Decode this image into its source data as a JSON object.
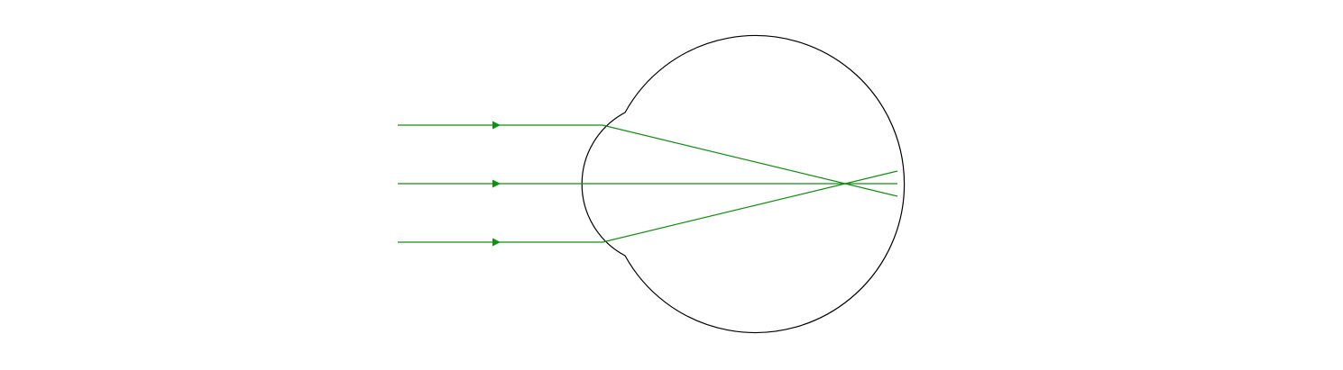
{
  "diagram": {
    "colors": {
      "outline": "#000000",
      "ray": "#109010",
      "arrowhead": "#109010",
      "background": "#ffffff"
    },
    "eyeball": {
      "shape": "eye-outline",
      "part": "cornea-bulge"
    },
    "rays": [
      {
        "id": "upper",
        "path": "parallel-then-refracted-down"
      },
      {
        "id": "middle",
        "path": "straight-along-axis"
      },
      {
        "id": "lower",
        "path": "parallel-then-refracted-up"
      }
    ],
    "focus": "crossing-before-retina"
  }
}
